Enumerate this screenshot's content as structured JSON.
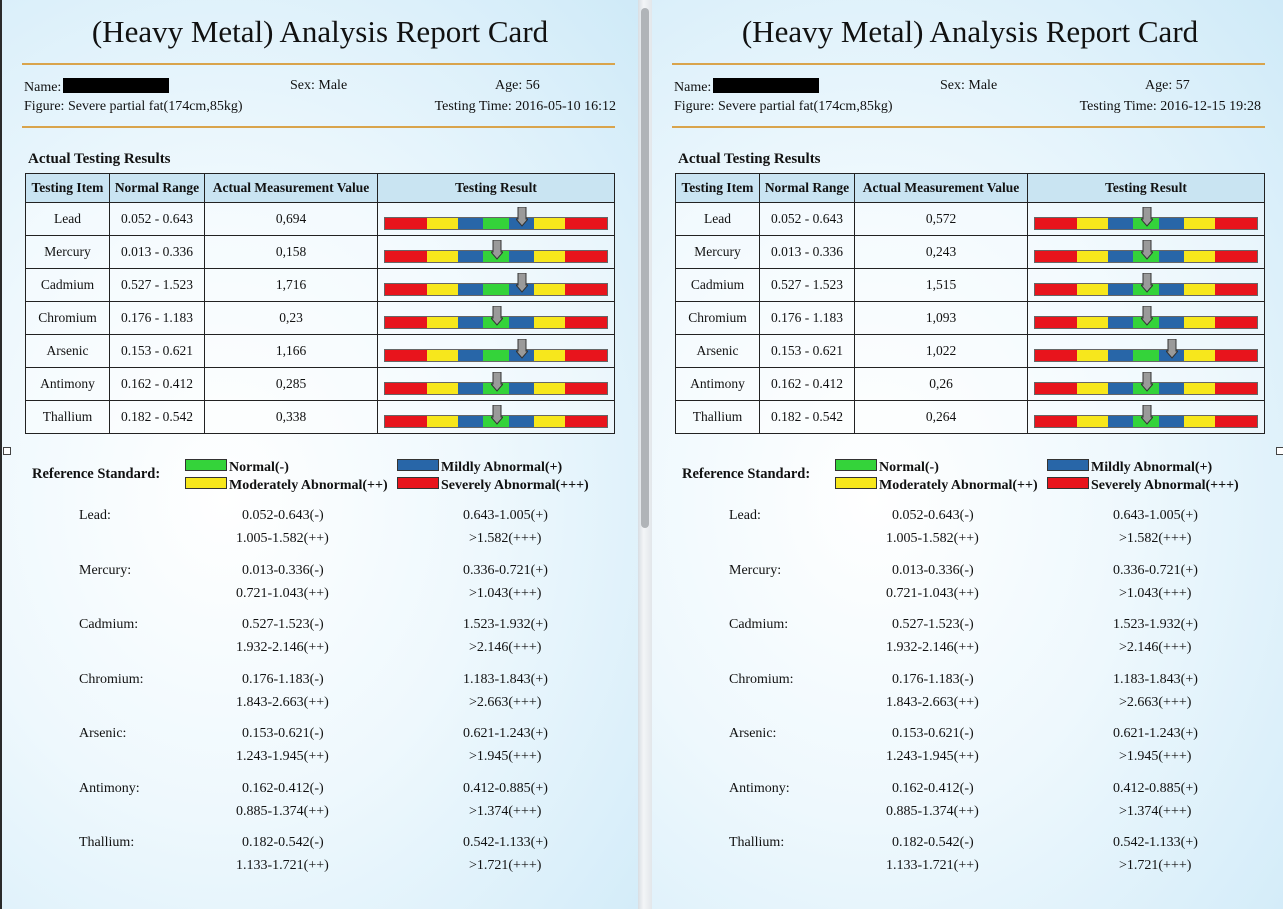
{
  "title": "(Heavy Metal) Analysis Report Card",
  "labels": {
    "name": "Name:",
    "sex": "Sex: Male",
    "figure": "Figure: Severe partial fat(174cm,85kg)",
    "section": "Actual Testing Results",
    "reference": "Reference Standard:"
  },
  "table_headers": [
    "Testing Item",
    "Normal Range",
    "Actual Measurement Value",
    "Testing Result"
  ],
  "colors": {
    "red": "#e8141c",
    "yellow": "#f7e71c",
    "blue": "#2866a8",
    "green": "#34d33a",
    "accent_line": "#d9a44c"
  },
  "legend": [
    {
      "label": "Normal(-)",
      "color": "#34d33a"
    },
    {
      "label": "Mildly Abnormal(+)",
      "color": "#2866a8"
    },
    {
      "label": "Moderately Abnormal(++)",
      "color": "#f7e71c"
    },
    {
      "label": "Severely Abnormal(+++)",
      "color": "#e8141c"
    }
  ],
  "reference": [
    {
      "label": "Lead:",
      "normal": "0.052-0.643(-)",
      "mild": "0.643-1.005(+)",
      "moderate": "1.005-1.582(++)",
      "severe": ">1.582(+++)"
    },
    {
      "label": "Mercury:",
      "normal": "0.013-0.336(-)",
      "mild": "0.336-0.721(+)",
      "moderate": "0.721-1.043(++)",
      "severe": ">1.043(+++)"
    },
    {
      "label": "Cadmium:",
      "normal": "0.527-1.523(-)",
      "mild": "1.523-1.932(+)",
      "moderate": "1.932-2.146(++)",
      "severe": ">2.146(+++)"
    },
    {
      "label": "Chromium:",
      "normal": "0.176-1.183(-)",
      "mild": "1.183-1.843(+)",
      "moderate": "1.843-2.663(++)",
      "severe": ">2.663(+++)"
    },
    {
      "label": "Arsenic:",
      "normal": "0.153-0.621(-)",
      "mild": "0.621-1.243(+)",
      "moderate": "1.243-1.945(++)",
      "severe": ">1.945(+++)"
    },
    {
      "label": "Antimony:",
      "normal": "0.162-0.412(-)",
      "mild": "0.412-0.885(+)",
      "moderate": "0.885-1.374(++)",
      "severe": ">1.374(+++)"
    },
    {
      "label": "Thallium:",
      "normal": "0.182-0.542(-)",
      "mild": "0.542-1.133(+)",
      "moderate": "1.133-1.721(++)",
      "severe": ">1.721(+++)"
    }
  ],
  "reports": [
    {
      "age": "Age: 56",
      "testing_time": "Testing Time: 2016-05-10 16:12",
      "rows": [
        {
          "item": "Lead",
          "range": "0.052 - 0.643",
          "value": "0,694",
          "level": "mild"
        },
        {
          "item": "Mercury",
          "range": "0.013 - 0.336",
          "value": "0,158",
          "level": "normal"
        },
        {
          "item": "Cadmium",
          "range": "0.527 - 1.523",
          "value": "1,716",
          "level": "mild"
        },
        {
          "item": "Chromium",
          "range": "0.176 - 1.183",
          "value": "0,23",
          "level": "normal"
        },
        {
          "item": "Arsenic",
          "range": "0.153 - 0.621",
          "value": "1,166",
          "level": "mild"
        },
        {
          "item": "Antimony",
          "range": "0.162 - 0.412",
          "value": "0,285",
          "level": "normal"
        },
        {
          "item": "Thallium",
          "range": "0.182 - 0.542",
          "value": "0,338",
          "level": "normal"
        }
      ]
    },
    {
      "age": "Age: 57",
      "testing_time": "Testing Time: 2016-12-15 19:28",
      "rows": [
        {
          "item": "Lead",
          "range": "0.052 - 0.643",
          "value": "0,572",
          "level": "normal"
        },
        {
          "item": "Mercury",
          "range": "0.013 - 0.336",
          "value": "0,243",
          "level": "normal"
        },
        {
          "item": "Cadmium",
          "range": "0.527 - 1.523",
          "value": "1,515",
          "level": "normal"
        },
        {
          "item": "Chromium",
          "range": "0.176 - 1.183",
          "value": "1,093",
          "level": "normal"
        },
        {
          "item": "Arsenic",
          "range": "0.153 - 0.621",
          "value": "1,022",
          "level": "mild"
        },
        {
          "item": "Antimony",
          "range": "0.162 - 0.412",
          "value": "0,26",
          "level": "normal"
        },
        {
          "item": "Thallium",
          "range": "0.182 - 0.542",
          "value": "0,264",
          "level": "normal"
        }
      ]
    }
  ]
}
